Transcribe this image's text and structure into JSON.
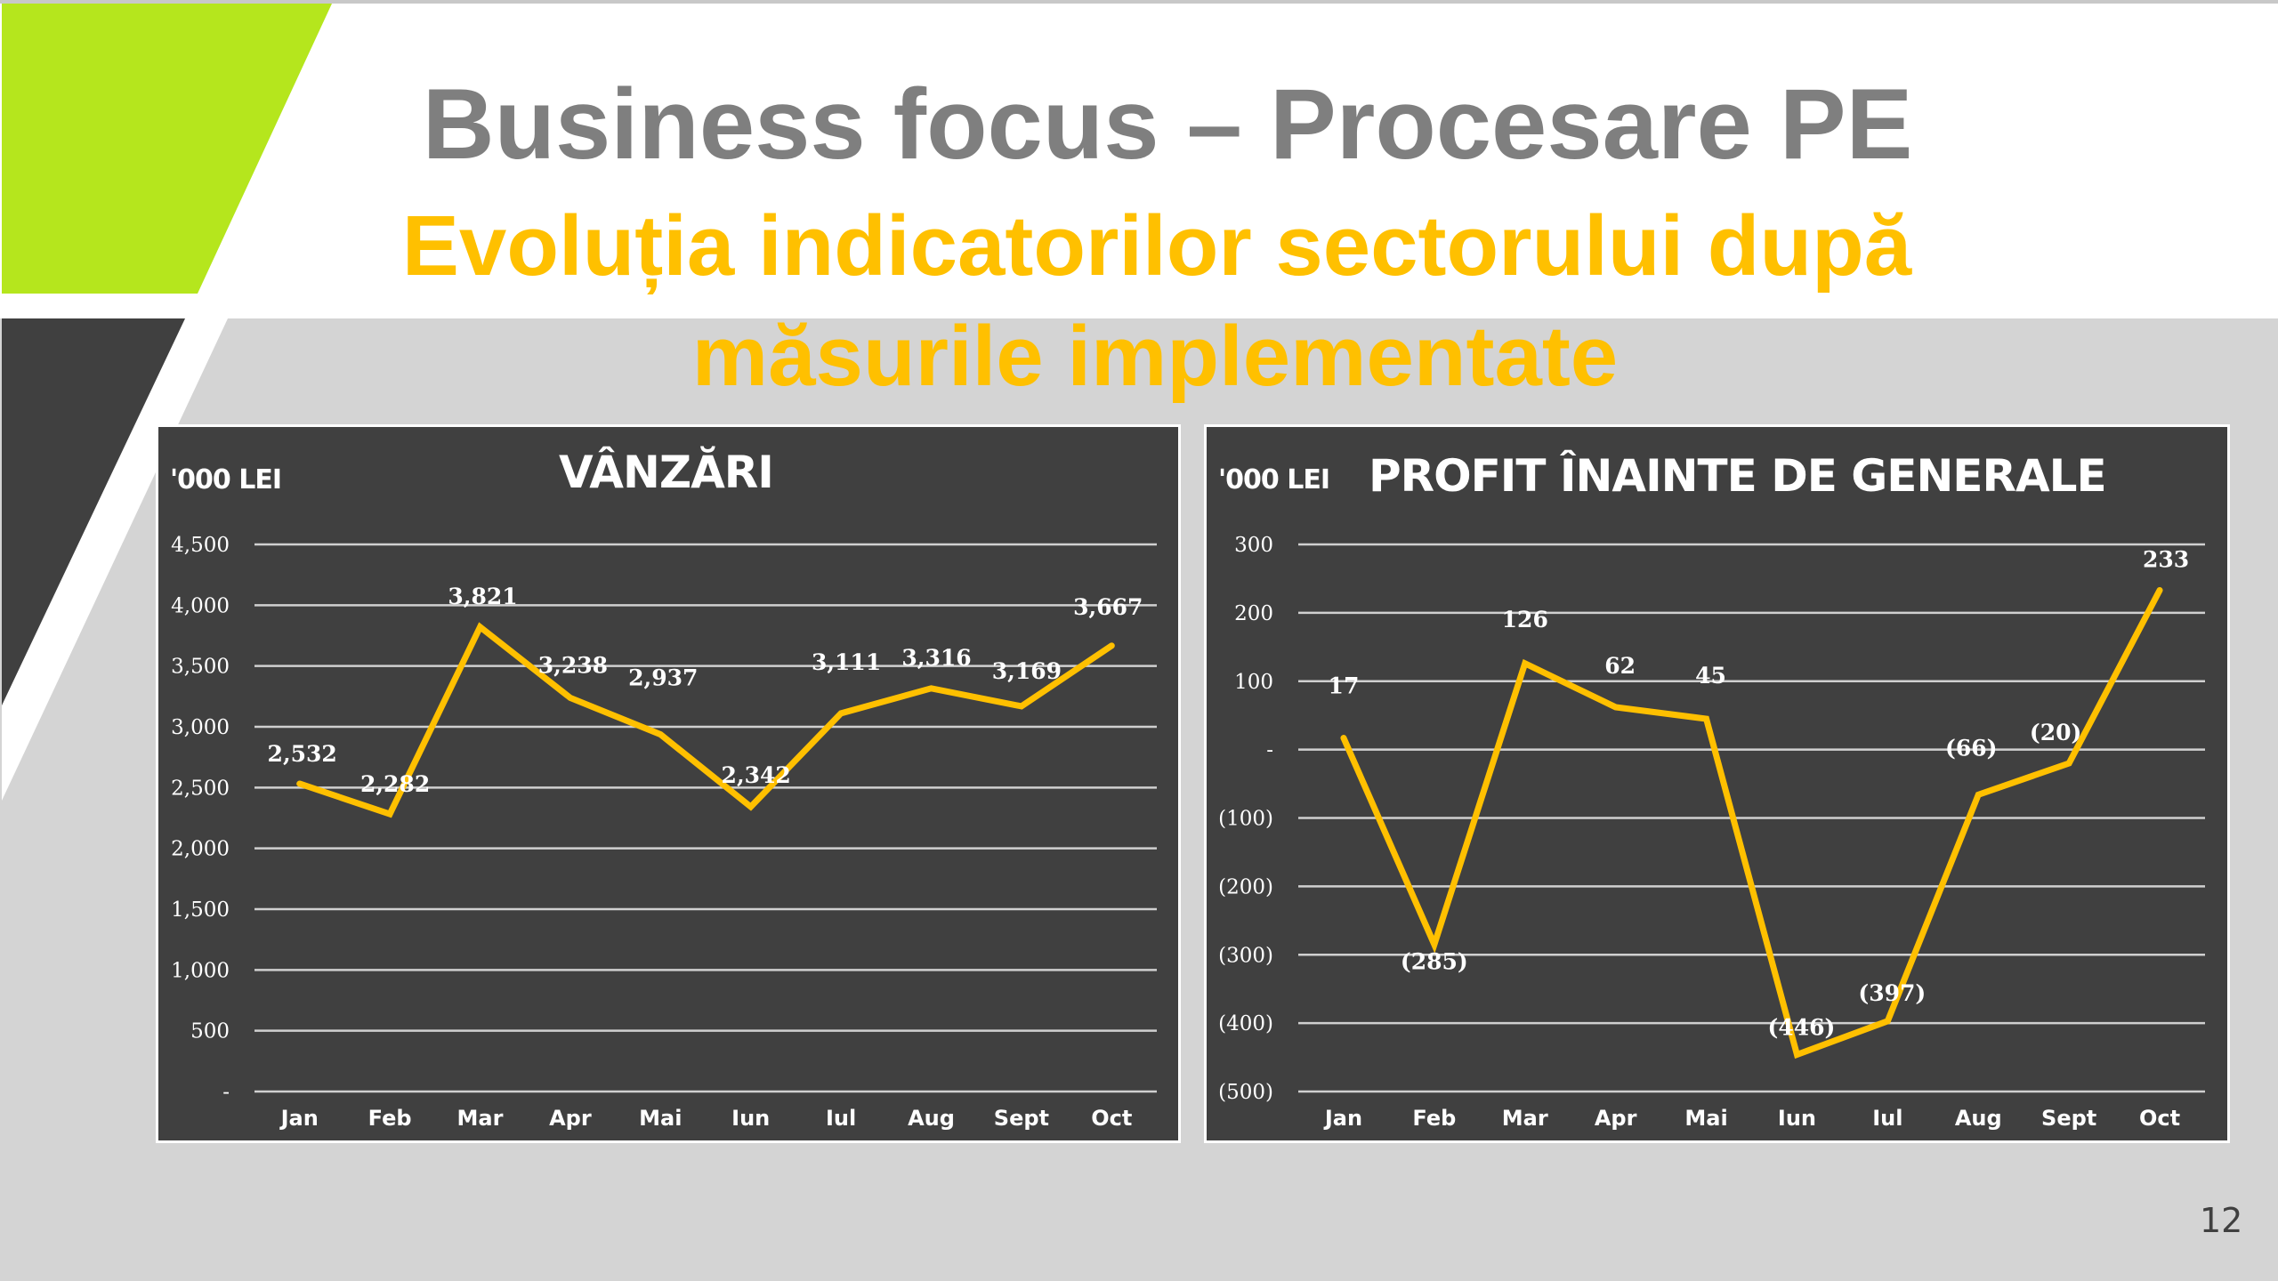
{
  "slide": {
    "title": "Business focus – Procesare PE",
    "subtitle_line1": "Evoluția indicatorilor sectorului după",
    "subtitle_line2": "măsurile implementate",
    "page_number": "12",
    "colors": {
      "accent_green": "#b5e61d",
      "dark": "#404040",
      "title_grey": "#7f7f7f",
      "subtitle_yellow": "#ffc000",
      "line_yellow": "#ffc000",
      "background_grey": "#d4d4d4"
    }
  },
  "charts": {
    "left": {
      "unit_label": "'000 LEI",
      "title": "VÂNZĂRI"
    },
    "right": {
      "unit_label": "'000 LEI",
      "title": "PROFIT ÎNAINTE DE GENERALE"
    }
  },
  "chart_data": [
    {
      "type": "line",
      "title": "VÂNZĂRI",
      "ylabel": "'000 LEI",
      "xlabel": "",
      "categories": [
        "Jan",
        "Feb",
        "Mar",
        "Apr",
        "Mai",
        "Iun",
        "Iul",
        "Aug",
        "Sept",
        "Oct"
      ],
      "series": [
        {
          "name": "Vânzări",
          "color": "#ffc000",
          "values": [
            2532,
            2282,
            3821,
            3238,
            2937,
            2342,
            3111,
            3316,
            3169,
            3667
          ],
          "labels": [
            "2,532",
            "2,282",
            "3,821",
            "3,238",
            "2,937",
            "2,342",
            "3,111",
            "3,316",
            "3,169",
            "3,667"
          ]
        }
      ],
      "ylim": [
        0,
        4500
      ],
      "yticks": [
        0,
        500,
        1000,
        1500,
        2000,
        2500,
        3000,
        3500,
        4000,
        4500
      ],
      "ytick_labels": [
        "-",
        "500",
        "1,000",
        "1,500",
        "2,000",
        "2,500",
        "3,000",
        "3,500",
        "4,000",
        "4,500"
      ],
      "grid": true,
      "legend": "none"
    },
    {
      "type": "line",
      "title": "PROFIT ÎNAINTE DE GENERALE",
      "ylabel": "'000 LEI",
      "xlabel": "",
      "categories": [
        "Jan",
        "Feb",
        "Mar",
        "Apr",
        "Mai",
        "Iun",
        "Iul",
        "Aug",
        "Sept",
        "Oct"
      ],
      "series": [
        {
          "name": "Profit înainte de generale",
          "color": "#ffc000",
          "values": [
            17,
            -285,
            126,
            62,
            45,
            -446,
            -397,
            -66,
            -20,
            233
          ],
          "labels": [
            "17",
            "(285)",
            "126",
            "62",
            "45",
            "(446)",
            "(397)",
            "(66)",
            "(20)",
            "233"
          ]
        }
      ],
      "ylim": [
        -500,
        300
      ],
      "yticks": [
        -500,
        -400,
        -300,
        -200,
        -100,
        0,
        100,
        200,
        300
      ],
      "ytick_labels": [
        "(500)",
        "(400)",
        "(300)",
        "(200)",
        "(100)",
        "-",
        "100",
        "200",
        "300"
      ],
      "grid": true,
      "legend": "none"
    }
  ]
}
